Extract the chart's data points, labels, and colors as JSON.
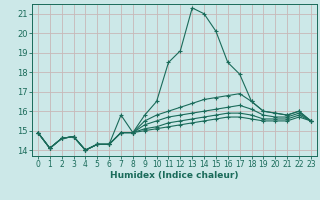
{
  "xlabel": "Humidex (Indice chaleur)",
  "ylabel": "",
  "background_color": "#cce8e8",
  "grid_color": "#b8d8d8",
  "line_color": "#1a6b5a",
  "spine_color": "#1a6b5a",
  "xlim": [
    -0.5,
    23.5
  ],
  "ylim": [
    13.7,
    21.5
  ],
  "yticks": [
    14,
    15,
    16,
    17,
    18,
    19,
    20,
    21
  ],
  "xticks": [
    0,
    1,
    2,
    3,
    4,
    5,
    6,
    7,
    8,
    9,
    10,
    11,
    12,
    13,
    14,
    15,
    16,
    17,
    18,
    19,
    20,
    21,
    22,
    23
  ],
  "series": [
    {
      "x": [
        0,
        1,
        2,
        3,
        4,
        5,
        6,
        7,
        8,
        9,
        10,
        11,
        12,
        13,
        14,
        15,
        16,
        17,
        18,
        19,
        20,
        21,
        22,
        23
      ],
      "y": [
        14.9,
        14.1,
        14.6,
        14.7,
        14.0,
        14.3,
        14.3,
        15.8,
        14.9,
        15.8,
        16.5,
        18.5,
        19.1,
        21.3,
        21.0,
        20.1,
        18.5,
        17.9,
        16.5,
        16.0,
        15.9,
        15.8,
        16.0,
        15.5
      ]
    },
    {
      "x": [
        0,
        1,
        2,
        3,
        4,
        5,
        6,
        7,
        8,
        9,
        10,
        11,
        12,
        13,
        14,
        15,
        16,
        17,
        18,
        19,
        20,
        21,
        22,
        23
      ],
      "y": [
        14.9,
        14.1,
        14.6,
        14.7,
        14.0,
        14.3,
        14.3,
        14.9,
        14.9,
        15.5,
        15.8,
        16.0,
        16.2,
        16.4,
        16.6,
        16.7,
        16.8,
        16.9,
        16.5,
        16.0,
        15.9,
        15.8,
        16.0,
        15.5
      ]
    },
    {
      "x": [
        0,
        1,
        2,
        3,
        4,
        5,
        6,
        7,
        8,
        9,
        10,
        11,
        12,
        13,
        14,
        15,
        16,
        17,
        18,
        19,
        20,
        21,
        22,
        23
      ],
      "y": [
        14.9,
        14.1,
        14.6,
        14.7,
        14.0,
        14.3,
        14.3,
        14.9,
        14.9,
        15.3,
        15.5,
        15.7,
        15.8,
        15.9,
        16.0,
        16.1,
        16.2,
        16.3,
        16.1,
        15.8,
        15.7,
        15.7,
        15.9,
        15.5
      ]
    },
    {
      "x": [
        0,
        1,
        2,
        3,
        4,
        5,
        6,
        7,
        8,
        9,
        10,
        11,
        12,
        13,
        14,
        15,
        16,
        17,
        18,
        19,
        20,
        21,
        22,
        23
      ],
      "y": [
        14.9,
        14.1,
        14.6,
        14.7,
        14.0,
        14.3,
        14.3,
        14.9,
        14.9,
        15.1,
        15.2,
        15.4,
        15.5,
        15.6,
        15.7,
        15.8,
        15.9,
        15.9,
        15.8,
        15.6,
        15.6,
        15.6,
        15.8,
        15.5
      ]
    },
    {
      "x": [
        0,
        1,
        2,
        3,
        4,
        5,
        6,
        7,
        8,
        9,
        10,
        11,
        12,
        13,
        14,
        15,
        16,
        17,
        18,
        19,
        20,
        21,
        22,
        23
      ],
      "y": [
        14.9,
        14.1,
        14.6,
        14.7,
        14.0,
        14.3,
        14.3,
        14.9,
        14.9,
        15.0,
        15.1,
        15.2,
        15.3,
        15.4,
        15.5,
        15.6,
        15.7,
        15.7,
        15.6,
        15.5,
        15.5,
        15.5,
        15.7,
        15.5
      ]
    }
  ]
}
